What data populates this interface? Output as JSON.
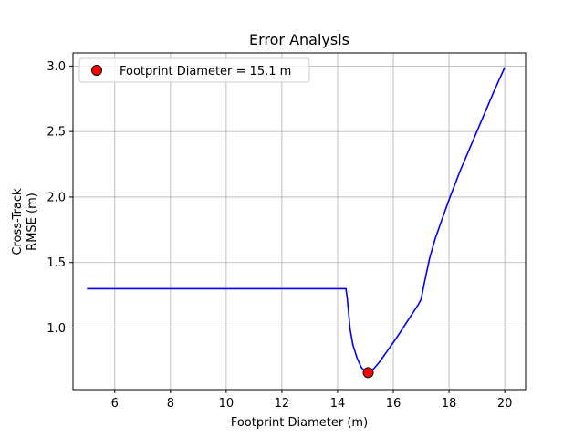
{
  "chart_data": {
    "type": "line",
    "title": "Error Analysis",
    "xlabel": "Footprint Diameter (m)",
    "ylabel_lines": [
      "Cross-Track",
      "RMSE (m)"
    ],
    "xlim": [
      4.5,
      20.75
    ],
    "ylim": [
      0.53,
      3.1
    ],
    "xticks": [
      6,
      8,
      10,
      12,
      14,
      16,
      18,
      20
    ],
    "yticks": [
      1.0,
      1.5,
      2.0,
      2.5,
      3.0
    ],
    "ytick_labels": [
      "1.0",
      "1.5",
      "2.0",
      "2.5",
      "3.0"
    ],
    "grid": true,
    "legend_position": "upper-left",
    "series": [
      {
        "color": "#0000ff",
        "x": [
          5.0,
          6.0,
          7.0,
          8.0,
          9.0,
          10.0,
          11.0,
          12.0,
          13.0,
          14.0,
          14.3,
          14.35,
          14.45,
          14.55,
          14.7,
          14.85,
          15.0,
          15.1,
          15.3,
          15.5,
          15.8,
          16.1,
          16.5,
          16.9,
          17.0,
          17.1,
          17.3,
          17.5,
          17.8,
          18.0,
          18.4,
          18.8,
          19.2,
          19.6,
          20.0
        ],
        "y": [
          1.3,
          1.3,
          1.3,
          1.3,
          1.3,
          1.3,
          1.3,
          1.3,
          1.3,
          1.3,
          1.3,
          1.22,
          0.99,
          0.87,
          0.77,
          0.7,
          0.665,
          0.66,
          0.69,
          0.74,
          0.83,
          0.92,
          1.05,
          1.18,
          1.22,
          1.33,
          1.53,
          1.68,
          1.86,
          1.98,
          2.2,
          2.4,
          2.6,
          2.8,
          2.99
        ]
      }
    ],
    "marker": {
      "x": 15.1,
      "y": 0.66,
      "color": "#ff0000",
      "edge_color": "#000000",
      "legend_label": "Footprint Diameter = 15.1 m"
    }
  }
}
